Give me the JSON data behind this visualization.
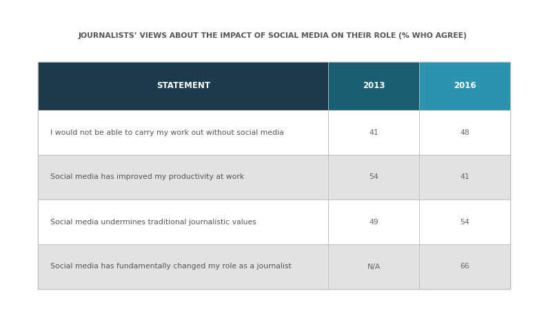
{
  "title": "JOURNALISTS’ VIEWS ABOUT THE IMPACT OF SOCIAL MEDIA ON THEIR ROLE (% WHO AGREE)",
  "header": [
    "STATEMENT",
    "2013",
    "2016"
  ],
  "rows": [
    [
      "I would not be able to carry my work out without social media",
      "41",
      "48"
    ],
    [
      "Social media has improved my productivity at work",
      "54",
      "41"
    ],
    [
      "Social media undermines traditional journalistic values",
      "49",
      "54"
    ],
    [
      "Social media has fundamentally changed my role as a journalist",
      "N/A",
      "66"
    ]
  ],
  "header_bg_statement": "#1b3a4b",
  "header_bg_2013": "#1b5e72",
  "header_bg_2016": "#2b94af",
  "header_text_color": "#ffffff",
  "row_bg_even": "#ffffff",
  "row_bg_odd": "#e2e2e2",
  "border_color": "#bbbbbb",
  "statement_text_color": "#555555",
  "value_text_color": "#666666",
  "title_color": "#555555",
  "background_color": "#ffffff",
  "outer_border_color": "#aaaaaa",
  "title_fontsize": 7.8,
  "header_fontsize": 8.5,
  "row_fontsize": 7.8
}
